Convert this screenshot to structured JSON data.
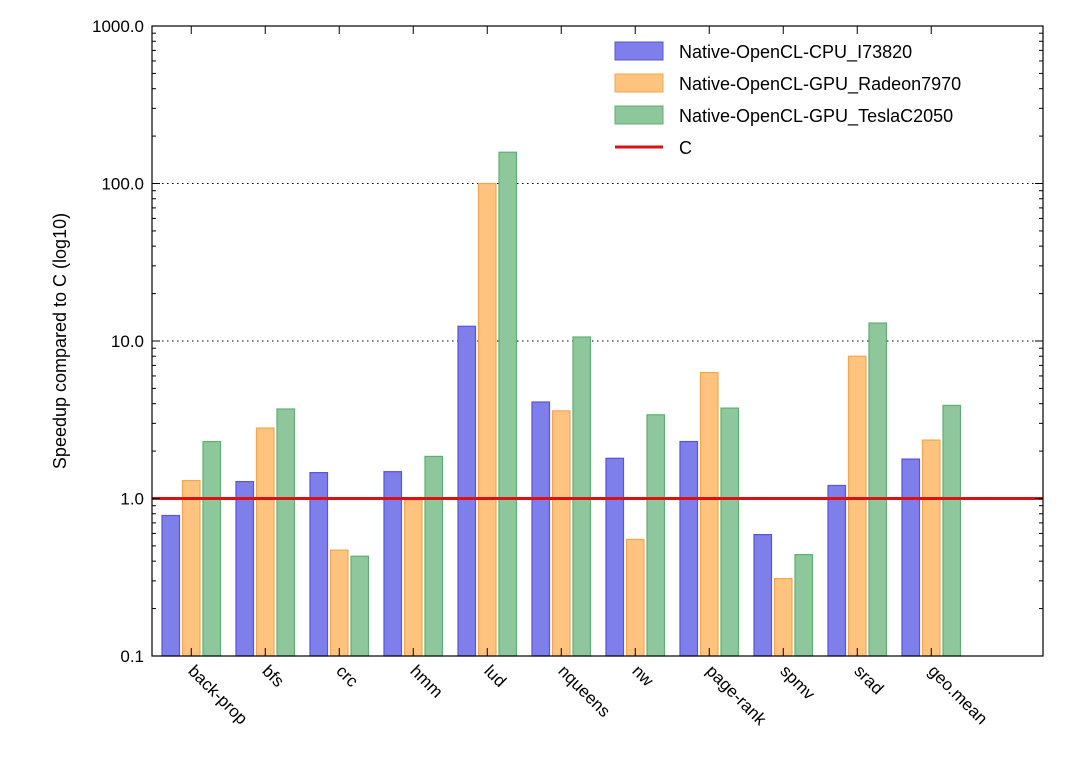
{
  "chart_data": {
    "type": "bar",
    "title": "",
    "xlabel": "",
    "ylabel": "Speedup compared to C (log10)",
    "yscale": "log10",
    "ylim": [
      0.1,
      1000
    ],
    "yticks": [
      "0.1",
      "1.0",
      "10.0",
      "100.0",
      "1000.0"
    ],
    "ytick_values": [
      0.1,
      1,
      10,
      100,
      1000
    ],
    "grid": "horizontal dotted at major ticks",
    "legend_position": "top-right",
    "categories": [
      "back-prop",
      "bfs",
      "crc",
      "hmm",
      "lud",
      "nqueens",
      "nw",
      "page-rank",
      "spmv",
      "srad",
      "geo.mean"
    ],
    "series": [
      {
        "name": "Native-OpenCL-CPU_I73820",
        "color": "#7f7fec",
        "edge": "#5555dd",
        "values": [
          0.78,
          1.28,
          1.46,
          1.48,
          12.4,
          4.1,
          1.8,
          2.3,
          0.59,
          1.21,
          1.78
        ]
      },
      {
        "name": "Native-OpenCL-GPU_Radeon7970",
        "color": "#ffc380",
        "edge": "#f5a64a",
        "values": [
          1.3,
          2.8,
          0.47,
          0.98,
          100,
          3.6,
          0.55,
          6.3,
          0.31,
          8.0,
          2.35
        ]
      },
      {
        "name": "Native-OpenCL-GPU_TeslaC2050",
        "color": "#8ec79b",
        "edge": "#5fae72",
        "values": [
          2.3,
          3.7,
          0.43,
          1.85,
          158,
          10.6,
          3.4,
          3.75,
          0.44,
          13.0,
          3.9
        ]
      }
    ],
    "reference_line": {
      "name": "C",
      "value": 1.0,
      "color": "#dd1111"
    }
  }
}
